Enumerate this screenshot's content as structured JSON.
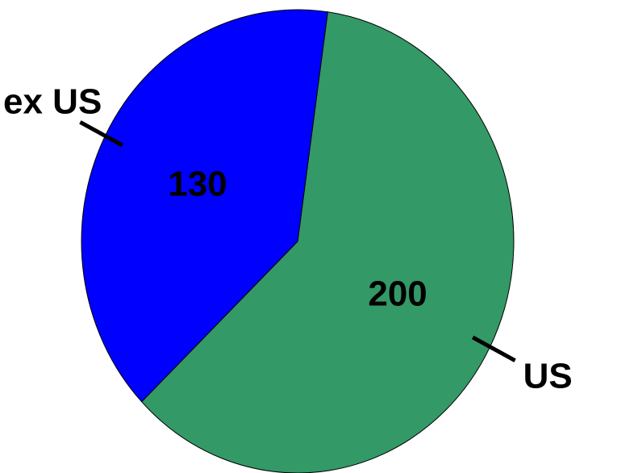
{
  "chart_data": {
    "type": "pie",
    "title": "",
    "slices": [
      {
        "label": "US",
        "value": 200,
        "value_label": "200",
        "color": "#339966"
      },
      {
        "label": "ex US",
        "value": 130,
        "value_label": "130",
        "color": "#0000FF"
      }
    ],
    "start_angle_deg": 8,
    "direction": "clockwise",
    "legend": "none",
    "labels_outside_with_leader_lines": true
  }
}
